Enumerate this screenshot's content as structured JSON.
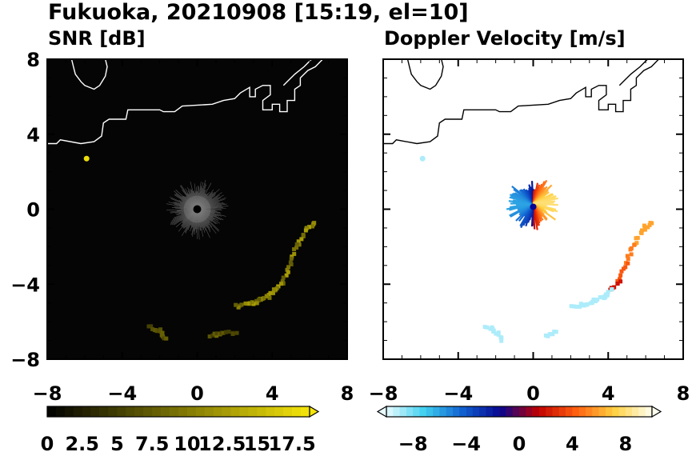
{
  "title": "Fukuoka, 20210908 [15:19, el=10]",
  "chart_data": [
    {
      "type": "heatmap",
      "title": "SNR [dB]",
      "xlim": [
        -8,
        8
      ],
      "ylim": [
        -8,
        8
      ],
      "x_ticks": [
        "−8",
        "−4",
        "0",
        "4",
        "8"
      ],
      "y_ticks": [
        "8",
        "4",
        "0",
        "−4",
        "−8"
      ],
      "background_color": "#050505",
      "coastline_color": "#ffffff",
      "colorbar": {
        "min": 0,
        "max": 18.75,
        "step": 0.625,
        "extend": "max",
        "colors": [
          "#000000",
          "#f5e50a"
        ],
        "labels": [
          "0",
          "2.5",
          "5",
          "7.5",
          "10",
          "12.5",
          "15",
          "17.5"
        ]
      },
      "features": [
        {
          "kind": "clutter",
          "x": 0,
          "y": 0,
          "radius": 1.6
        },
        {
          "kind": "echo",
          "x": -5.9,
          "y": 2.7,
          "value": 18
        },
        {
          "kind": "echo_band",
          "path": [
            [
              6.3,
              -0.7
            ],
            [
              5.9,
              -1.1
            ],
            [
              5.4,
              -1.9
            ],
            [
              5.0,
              -2.9
            ],
            [
              4.6,
              -3.9
            ],
            [
              4.2,
              -4.3
            ],
            [
              3.8,
              -4.7
            ],
            [
              3.3,
              -4.9
            ],
            [
              2.8,
              -5.1
            ],
            [
              2.1,
              -5.2
            ]
          ],
          "value": 12
        },
        {
          "kind": "echo_band",
          "path": [
            [
              -2.5,
              -6.3
            ],
            [
              -2.0,
              -6.5
            ],
            [
              -1.6,
              -7.0
            ]
          ],
          "value": 8
        },
        {
          "kind": "echo_band",
          "path": [
            [
              0.7,
              -6.8
            ],
            [
              1.3,
              -6.6
            ],
            [
              2.1,
              -6.6
            ]
          ],
          "value": 8
        }
      ]
    },
    {
      "type": "heatmap",
      "title": "Doppler Velocity [m/s]",
      "xlim": [
        -8,
        8
      ],
      "ylim": [
        -8,
        8
      ],
      "x_ticks": [
        "−8",
        "−4",
        "0",
        "4",
        "8"
      ],
      "background_color": "#ffffff",
      "coastline_color": "#000000",
      "colorbar": {
        "min": -10,
        "max": 10,
        "step": 0.5,
        "extend": "both",
        "colors": [
          "#e8fbff",
          "#3fd0f0",
          "#1060d0",
          "#060690",
          "#c00000",
          "#ff6010",
          "#ffd040",
          "#fffff0"
        ],
        "labels": [
          "−8",
          "−4",
          "0",
          "4",
          "8"
        ]
      },
      "features": [
        {
          "kind": "dipole",
          "x": 0,
          "y": 0.3,
          "radius": 1.4,
          "vmin": -6,
          "vmax": 8
        },
        {
          "kind": "echo",
          "x": -5.9,
          "y": 2.7,
          "value": -9
        },
        {
          "kind": "echo_band",
          "path": [
            [
              6.3,
              -0.7
            ],
            [
              5.9,
              -1.1
            ],
            [
              5.4,
              -1.9
            ],
            [
              5.0,
              -2.9
            ],
            [
              4.6,
              -3.9
            ],
            [
              4.2,
              -4.3
            ],
            [
              3.8,
              -4.7
            ],
            [
              3.3,
              -4.9
            ],
            [
              2.8,
              -5.1
            ],
            [
              2.1,
              -5.2
            ]
          ],
          "values": [
            6,
            6,
            5,
            4,
            2,
            -9,
            -9,
            -9,
            -9,
            -9
          ]
        },
        {
          "kind": "echo_band",
          "path": [
            [
              -2.5,
              -6.3
            ],
            [
              -2.0,
              -6.5
            ],
            [
              -1.6,
              -7.0
            ]
          ],
          "value": -9
        },
        {
          "kind": "echo_band",
          "path": [
            [
              0.7,
              -6.8
            ],
            [
              1.3,
              -6.6
            ]
          ],
          "value": -9
        }
      ]
    }
  ]
}
